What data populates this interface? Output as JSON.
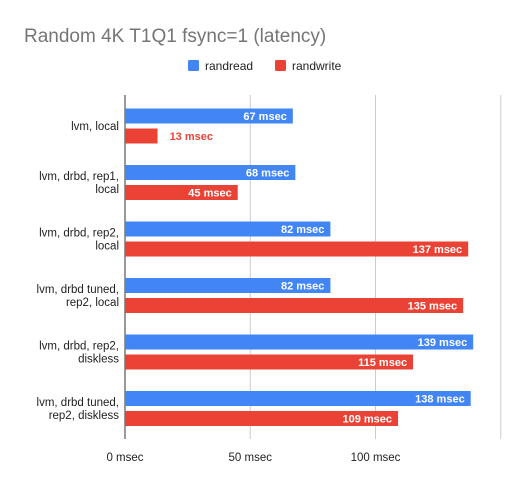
{
  "chart_data": {
    "type": "bar",
    "orientation": "horizontal",
    "title": "Random 4K T1Q1 fsync=1 (latency)",
    "categories": [
      [
        "lvm, local"
      ],
      [
        "lvm, drbd, rep1,",
        "local"
      ],
      [
        "lvm, drbd, rep2,",
        "local"
      ],
      [
        "lvm, drbd tuned,",
        "rep2, local"
      ],
      [
        "lvm, drbd, rep2,",
        "diskless"
      ],
      [
        "lvm, drbd tuned,",
        "rep2, diskless"
      ]
    ],
    "series": [
      {
        "name": "randread",
        "color": "#4285f4",
        "values": [
          67,
          68,
          82,
          82,
          139,
          138
        ],
        "labels": [
          "67 msec",
          "68 msec",
          "82 msec",
          "82 msec",
          "139 msec",
          "138 msec"
        ]
      },
      {
        "name": "randwrite",
        "color": "#ea4335",
        "values": [
          13,
          45,
          137,
          135,
          115,
          109
        ],
        "labels": [
          "13 msec",
          "45 msec",
          "137 msec",
          "135 msec",
          "115 msec",
          "109 msec"
        ]
      }
    ],
    "x_ticks": [
      0,
      50,
      100
    ],
    "x_tick_labels": [
      "0 msec",
      "50 msec",
      "100 msec"
    ],
    "xlim": [
      0,
      150
    ],
    "grid": true,
    "legend_position": "top"
  }
}
